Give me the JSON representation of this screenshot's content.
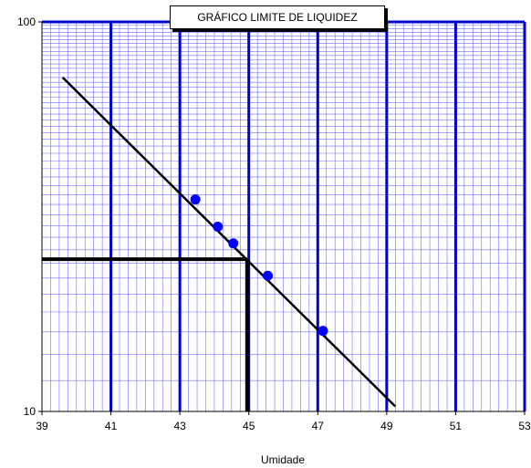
{
  "chart_data": {
    "type": "scatter",
    "title": "GRÁFICO LIMITE DE LIQUIDEZ",
    "xlabel": "Umidade",
    "ylabel": "",
    "xlim": [
      39,
      53
    ],
    "ylim": [
      10,
      100
    ],
    "y_scale": "log",
    "x_ticks": [
      "39",
      "41",
      "43",
      "45",
      "47",
      "49",
      "51",
      "53"
    ],
    "y_ticks": [
      "10",
      "100"
    ],
    "grid": true,
    "points": [
      {
        "x": 43.45,
        "y": 35.0
      },
      {
        "x": 44.1,
        "y": 29.8
      },
      {
        "x": 44.55,
        "y": 27.0
      },
      {
        "x": 45.55,
        "y": 22.3
      },
      {
        "x": 47.15,
        "y": 16.1
      }
    ],
    "trend_line": [
      {
        "x": 39.6,
        "y": 72.0
      },
      {
        "x": 49.25,
        "y": 10.3
      }
    ],
    "reference": {
      "x": 44.95,
      "y": 24.6
    },
    "colors": {
      "points": "#0000ff",
      "major_grid": "#0000cc",
      "minor_grid": "#7070ff",
      "line": "#000000"
    }
  }
}
